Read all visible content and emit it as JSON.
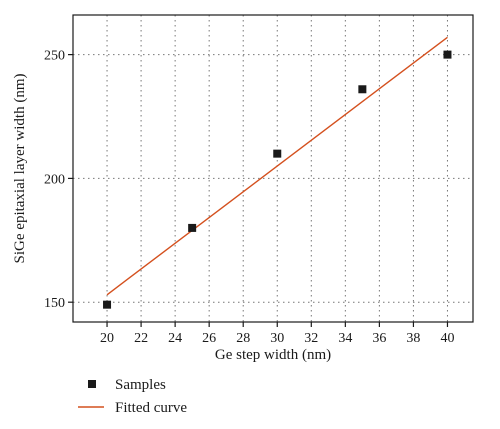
{
  "chart_data": {
    "type": "scatter",
    "xlabel": "Ge step width (nm)",
    "ylabel": "SiGe epitaxial layer width (nm)",
    "xlim": [
      18,
      41.5
    ],
    "ylim": [
      142,
      266
    ],
    "x_ticks": [
      20,
      22,
      24,
      26,
      28,
      30,
      32,
      34,
      36,
      38,
      40
    ],
    "y_ticks": [
      150,
      200,
      250
    ],
    "grid": true,
    "legend_position": "bottom-left, below plot",
    "series": [
      {
        "name": "Samples",
        "type": "scatter",
        "marker": "square",
        "color": "#1a1a1a",
        "x": [
          20,
          25,
          30,
          35,
          40
        ],
        "y": [
          149,
          180,
          210,
          236,
          250
        ]
      },
      {
        "name": "Fitted curve",
        "type": "line",
        "color": "#d4501e",
        "x": [
          20,
          40
        ],
        "y": [
          153,
          257
        ]
      }
    ]
  }
}
